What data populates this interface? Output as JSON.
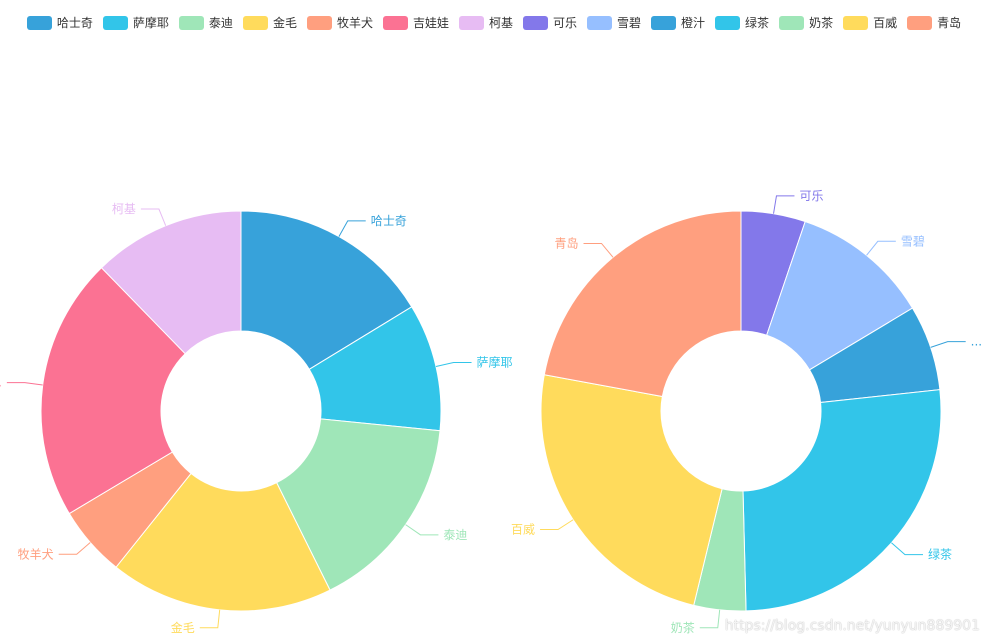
{
  "chart_data": [
    {
      "type": "pie",
      "variant": "donut",
      "slices": [
        {
          "name": "哈士奇",
          "value": 16.3,
          "color": "#37a2da"
        },
        {
          "name": "萨摩耶",
          "value": 10.3,
          "color": "#32c5e9"
        },
        {
          "name": "泰迪",
          "value": 16.1,
          "color": "#9fe6b8"
        },
        {
          "name": "金毛",
          "value": 18.1,
          "color": "#ffdb5c"
        },
        {
          "name": "牧羊犬",
          "value": 5.7,
          "color": "#ff9f7f"
        },
        {
          "name": "吉娃娃",
          "value": 21.3,
          "color": "#fb7293",
          "label_truncated": true
        },
        {
          "name": "柯基",
          "value": 12.3,
          "color": "#e7bcf3"
        }
      ]
    },
    {
      "type": "pie",
      "variant": "donut",
      "slices": [
        {
          "name": "可乐",
          "value": 5.2,
          "color": "#8378ea"
        },
        {
          "name": "雪碧",
          "value": 11.2,
          "color": "#96bfff"
        },
        {
          "name": "橙汁",
          "value": 6.9,
          "color": "#37a2da",
          "label_truncated": true
        },
        {
          "name": "绿茶",
          "value": 26.3,
          "color": "#32c5e9"
        },
        {
          "name": "奶茶",
          "value": 4.2,
          "color": "#9fe6b8"
        },
        {
          "name": "百威",
          "value": 24.1,
          "color": "#ffdb5c"
        },
        {
          "name": "青岛",
          "value": 22.1,
          "color": "#ff9f7f"
        }
      ]
    }
  ],
  "legend_position": "top-center",
  "ellipsis": "...",
  "watermark": "https://blog.csdn.net/yunyun889901"
}
